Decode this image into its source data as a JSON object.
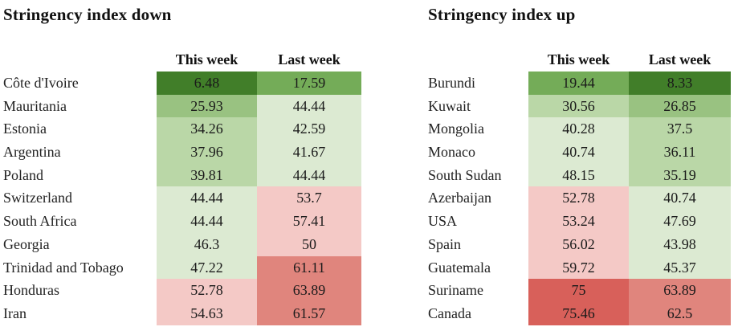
{
  "page": {
    "background": "#ffffff",
    "text_color": "#1a1a1a"
  },
  "chart_data": [
    {
      "type": "heatmap",
      "title": "Stringency index down",
      "columns": [
        "This week",
        "Last week"
      ],
      "rows": [
        "Côte d'Ivoire",
        "Mauritania",
        "Estonia",
        "Argentina",
        "Poland",
        "Switzerland",
        "South Africa",
        "Georgia",
        "Trinidad and Tobago",
        "Honduras",
        "Iran"
      ],
      "values": [
        [
          6.48,
          17.59
        ],
        [
          25.93,
          44.44
        ],
        [
          34.26,
          42.59
        ],
        [
          37.96,
          41.67
        ],
        [
          39.81,
          44.44
        ],
        [
          44.44,
          53.7
        ],
        [
          44.44,
          57.41
        ],
        [
          46.3,
          50
        ],
        [
          47.22,
          61.11
        ],
        [
          52.78,
          63.89
        ],
        [
          54.63,
          61.57
        ]
      ],
      "color_scale": {
        "domain": [
          0,
          80
        ],
        "bin_size": 10,
        "colors": [
          "#417e29",
          "#74ac58",
          "#99c281",
          "#bad7a7",
          "#dcead2",
          "#f4c9c6",
          "#e0857d",
          "#d8605a"
        ]
      }
    },
    {
      "type": "heatmap",
      "title": "Stringency index up",
      "columns": [
        "This week",
        "Last week"
      ],
      "rows": [
        "Burundi",
        "Kuwait",
        "Mongolia",
        "Monaco",
        "South Sudan",
        "Azerbaijan",
        "USA",
        "Spain",
        "Guatemala",
        "Suriname",
        "Canada"
      ],
      "values": [
        [
          19.44,
          8.33
        ],
        [
          30.56,
          26.85
        ],
        [
          40.28,
          37.5
        ],
        [
          40.74,
          36.11
        ],
        [
          48.15,
          35.19
        ],
        [
          52.78,
          40.74
        ],
        [
          53.24,
          47.69
        ],
        [
          56.02,
          43.98
        ],
        [
          59.72,
          45.37
        ],
        [
          75,
          63.89
        ],
        [
          75.46,
          62.5
        ]
      ],
      "color_scale": {
        "domain": [
          0,
          80
        ],
        "bin_size": 10,
        "colors": [
          "#417e29",
          "#74ac58",
          "#99c281",
          "#bad7a7",
          "#dcead2",
          "#f4c9c6",
          "#e0857d",
          "#d8605a"
        ]
      }
    }
  ]
}
